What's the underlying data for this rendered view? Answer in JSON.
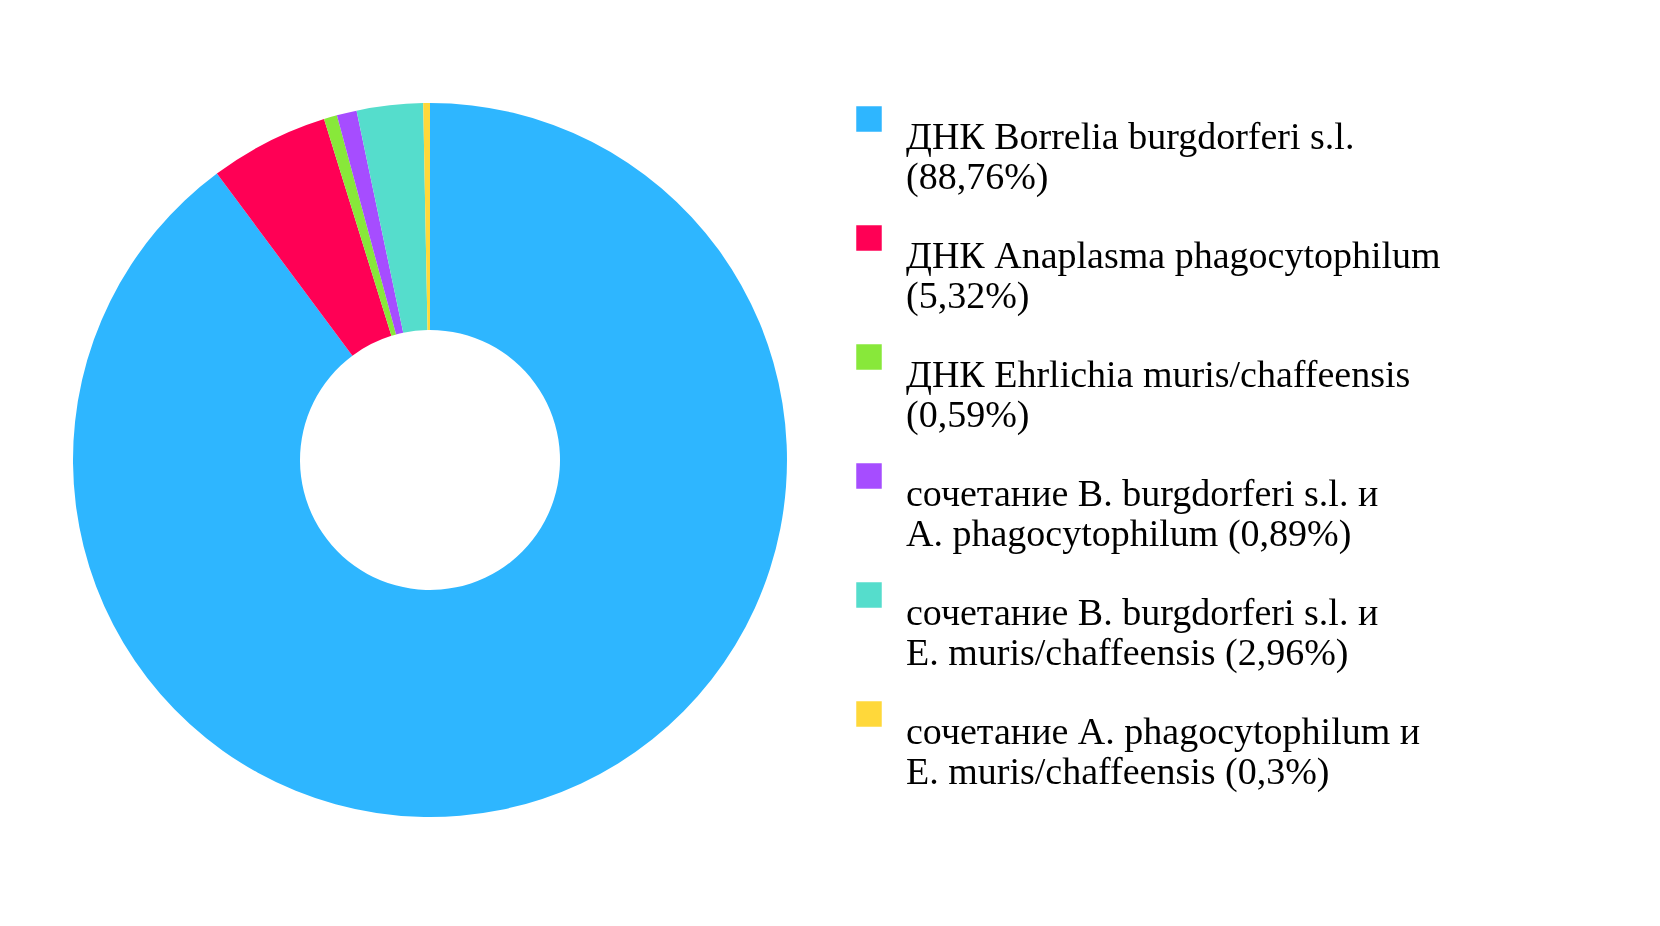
{
  "chart_data": {
    "type": "donut",
    "categories": [
      "ДНК Borrelia burgdorferi s.l. (88,76%)",
      "ДНК Anaplasma phagocytophilum (5,32%)",
      "ДНК Ehrlichia muris/chaffeensis (0,59%)",
      "сочетание B. burgdorferi s.l. и A. phagocytophilum (0,89%)",
      "сочетание B. burgdorferi s.l. и E. muris/chaffeensis (2,96%)",
      "сочетание A. phagocytophilum и E. muris/chaffeensis (0,3%)"
    ],
    "values": [
      88.76,
      5.32,
      0.59,
      0.89,
      2.96,
      0.3
    ],
    "colors": [
      "#2eb6ff",
      "#ff0055",
      "#88e83a",
      "#a64dff",
      "#55ddcc",
      "#ffd83a"
    ],
    "legend": "right"
  }
}
